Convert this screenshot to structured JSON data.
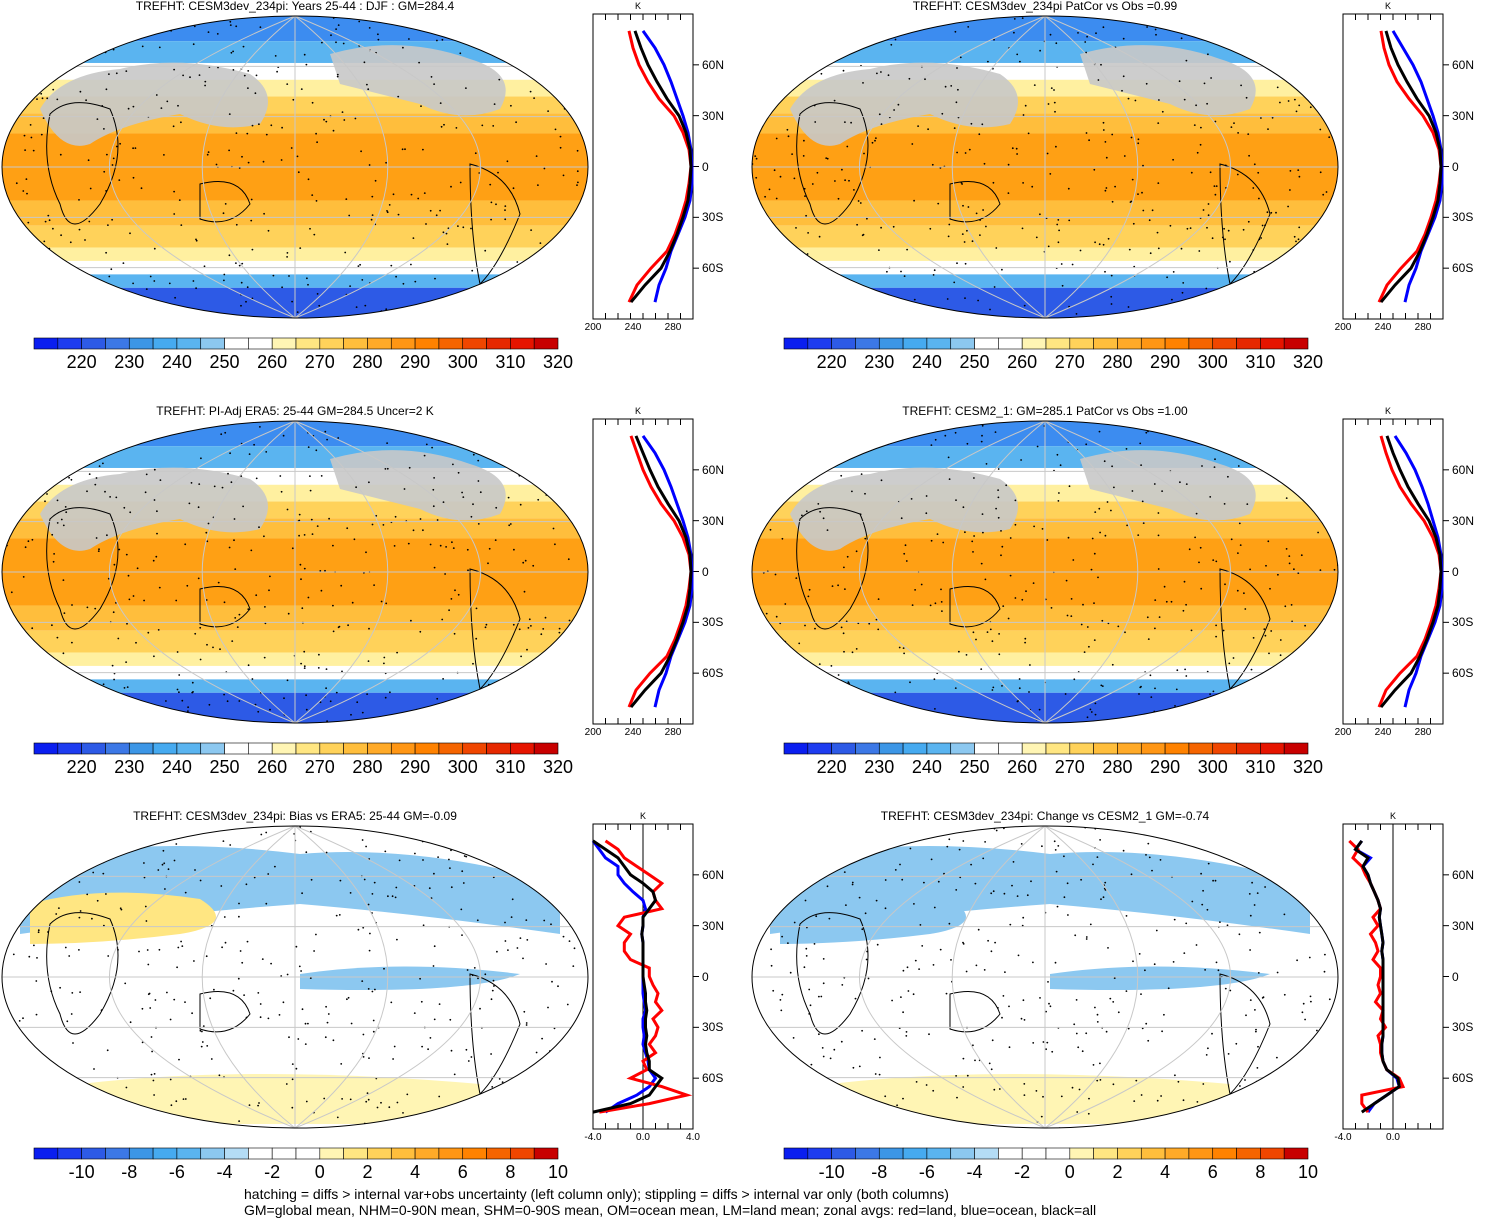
{
  "footnotes": {
    "line1": "hatching = diffs > internal var+obs uncertainty (left column only); stippling = diffs > internal var only (both columns)",
    "line2": "GM=global mean, NHM=0-90N mean, SHM=0-90S mean, OM=ocean mean, LM=land mean; zonal avgs: red=land, blue=ocean, black=all"
  },
  "colors": {
    "land": "#ff0000",
    "ocean": "#0000ff",
    "all": "#000000",
    "missing": "#c8c8c8"
  },
  "abs_colorbar": {
    "labels": [
      "220",
      "230",
      "240",
      "250",
      "260",
      "270",
      "280",
      "290",
      "300",
      "310",
      "320"
    ],
    "colors": [
      "#0a1ef0",
      "#1e3cf0",
      "#2d5ae6",
      "#3c78e6",
      "#3c96e6",
      "#46aaf0",
      "#5ab4f0",
      "#8cc8f0",
      "#ffffff",
      "#ffffff",
      "#fff5b4",
      "#ffe682",
      "#ffd25a",
      "#ffbe3c",
      "#ffaa28",
      "#ff9614",
      "#ff8200",
      "#f56400",
      "#f04600",
      "#e62800",
      "#e61400",
      "#c80000"
    ]
  },
  "diff_colorbar": {
    "labels": [
      "-10",
      "-8",
      "-6",
      "-4",
      "-2",
      "0",
      "2",
      "4",
      "6",
      "8",
      "10"
    ],
    "colors": [
      "#0a1ef0",
      "#1e3cf0",
      "#2d5ae6",
      "#3c78e6",
      "#3c96e6",
      "#46aaf0",
      "#5ab4f0",
      "#8cc8f0",
      "#b4dcf5",
      "#ffffff",
      "#ffffff",
      "#ffffff",
      "#fff5b4",
      "#ffe682",
      "#ffd25a",
      "#ffbe3c",
      "#ffaa28",
      "#ff9614",
      "#ff8200",
      "#f56400",
      "#f04600",
      "#c80000"
    ]
  },
  "panels": [
    {
      "title": "TREFHT: CESM3dev_234pi: Years 25-44 : DJF : GM=284.4",
      "kind": "abs",
      "lat_ticks": [
        "60N",
        "30N",
        "0",
        "30S",
        "60S"
      ],
      "k_label": "K",
      "zm_ticks": [
        "200",
        "240",
        "280"
      ]
    },
    {
      "title": "TREFHT: CESM3dev_234pi PatCor vs Obs =0.99",
      "kind": "abs",
      "lat_ticks": [
        "60N",
        "30N",
        "0",
        "30S",
        "60S"
      ],
      "k_label": "K",
      "zm_ticks": [
        "200",
        "240",
        "280"
      ]
    },
    {
      "title": "TREFHT: PI-Adj ERA5: 25-44 GM=284.5 Uncer=2 K",
      "kind": "abs",
      "lat_ticks": [
        "60N",
        "30N",
        "0",
        "30S",
        "60S"
      ],
      "k_label": "K",
      "zm_ticks": [
        "200",
        "240",
        "280"
      ]
    },
    {
      "title": "TREFHT: CESM2_1: GM=285.1 PatCor vs Obs =1.00",
      "kind": "abs",
      "lat_ticks": [
        "60N",
        "30N",
        "0",
        "30S",
        "60S"
      ],
      "k_label": "K",
      "zm_ticks": [
        "200",
        "240",
        "280"
      ]
    },
    {
      "title": "TREFHT: CESM3dev_234pi: Bias vs ERA5: 25-44 GM=-0.09",
      "kind": "diff",
      "lat_ticks": [
        "60N",
        "30N",
        "0",
        "30S",
        "60S"
      ],
      "k_label": "K",
      "zm_ticks": [
        "-4.0",
        "0.0",
        "4.0"
      ]
    },
    {
      "title": "TREFHT: CESM3dev_234pi: Change vs CESM2_1 GM=-0.74",
      "kind": "diff",
      "lat_ticks": [
        "60N",
        "30N",
        "0",
        "30S",
        "60S"
      ],
      "k_label": "K",
      "zm_ticks": [
        "-4.0",
        "0.0"
      ]
    }
  ],
  "chart_data": {
    "type": "heatmap",
    "variable": "TREFHT",
    "units": "K",
    "panels": [
      {
        "title": "TREFHT: CESM3dev_234pi: Years 25-44 : DJF : GM=284.4",
        "global_mean": 284.4,
        "colorbar_range": [
          220,
          320
        ],
        "zonal_mean": {
          "lat": [
            80,
            70,
            60,
            50,
            40,
            30,
            20,
            10,
            0,
            -10,
            -20,
            -30,
            -40,
            -50,
            -60,
            -70,
            -80
          ],
          "land": [
            236,
            240,
            246,
            255,
            266,
            281,
            290,
            296,
            298,
            296,
            293,
            288,
            282,
            274,
            258,
            244,
            236
          ],
          "ocean": [
            250,
            262,
            271,
            278,
            284,
            290,
            295,
            298,
            299,
            299,
            297,
            292,
            285,
            278,
            273,
            266,
            262
          ],
          "all": [
            242,
            248,
            255,
            264,
            274,
            286,
            293,
            297,
            298,
            297,
            295,
            290,
            284,
            277,
            268,
            252,
            238
          ]
        }
      },
      {
        "title": "TREFHT: CESM3dev_234pi PatCor vs Obs =0.99",
        "pattern_correlation": 0.99,
        "colorbar_range": [
          220,
          320
        ],
        "zonal_mean": {
          "lat": [
            80,
            70,
            60,
            50,
            40,
            30,
            20,
            10,
            0,
            -10,
            -20,
            -30,
            -40,
            -50,
            -60,
            -70,
            -80
          ],
          "land": [
            238,
            241,
            246,
            254,
            266,
            280,
            290,
            296,
            298,
            296,
            293,
            288,
            282,
            274,
            258,
            244,
            236
          ],
          "ocean": [
            250,
            260,
            270,
            278,
            284,
            290,
            295,
            298,
            299,
            299,
            297,
            292,
            285,
            278,
            273,
            266,
            262
          ],
          "all": [
            243,
            248,
            255,
            264,
            274,
            286,
            293,
            297,
            298,
            297,
            295,
            290,
            284,
            277,
            268,
            252,
            238
          ]
        }
      },
      {
        "title": "TREFHT: PI-Adj ERA5: 25-44 GM=284.5 Uncer=2 K",
        "global_mean": 284.5,
        "uncertainty": 2,
        "colorbar_range": [
          220,
          320
        ],
        "zonal_mean": {
          "lat": [
            80,
            70,
            60,
            50,
            40,
            30,
            20,
            10,
            0,
            -10,
            -20,
            -30,
            -40,
            -50,
            -60,
            -70,
            -80
          ],
          "land": [
            238,
            244,
            250,
            258,
            268,
            281,
            290,
            296,
            298,
            296,
            293,
            288,
            282,
            274,
            257,
            243,
            236
          ],
          "ocean": [
            250,
            262,
            271,
            278,
            284,
            290,
            295,
            298,
            299,
            299,
            297,
            292,
            285,
            278,
            273,
            266,
            262
          ],
          "all": [
            243,
            250,
            257,
            265,
            275,
            286,
            293,
            297,
            298,
            297,
            295,
            290,
            284,
            277,
            268,
            252,
            238
          ]
        }
      },
      {
        "title": "TREFHT: CESM2_1: GM=285.1 PatCor vs Obs =1.00",
        "global_mean": 285.1,
        "pattern_correlation": 1.0,
        "colorbar_range": [
          220,
          320
        ],
        "zonal_mean": {
          "lat": [
            80,
            70,
            60,
            50,
            40,
            30,
            20,
            10,
            0,
            -10,
            -20,
            -30,
            -40,
            -50,
            -60,
            -70,
            -80
          ],
          "land": [
            238,
            243,
            249,
            257,
            268,
            281,
            290,
            296,
            298,
            296,
            293,
            288,
            282,
            274,
            257,
            243,
            236
          ],
          "ocean": [
            252,
            263,
            272,
            279,
            285,
            290,
            295,
            298,
            299,
            299,
            297,
            292,
            285,
            278,
            273,
            266,
            262
          ],
          "all": [
            244,
            250,
            257,
            265,
            275,
            286,
            293,
            297,
            298,
            297,
            295,
            290,
            284,
            277,
            268,
            252,
            238
          ]
        }
      },
      {
        "title": "TREFHT: CESM3dev_234pi: Bias vs ERA5: 25-44 GM=-0.09",
        "global_mean": -0.09,
        "colorbar_range": [
          -10,
          10
        ],
        "zonal_mean": {
          "lat": [
            80,
            75,
            70,
            65,
            60,
            55,
            50,
            45,
            40,
            35,
            30,
            25,
            20,
            15,
            10,
            5,
            0,
            -5,
            -10,
            -15,
            -20,
            -25,
            -30,
            -35,
            -40,
            -45,
            -50,
            -55,
            -60,
            -65,
            -70,
            -75,
            -80
          ],
          "land": [
            -3.0,
            -2.0,
            -1.5,
            -0.5,
            0.5,
            1.5,
            0.8,
            1.0,
            1.5,
            -1.5,
            -2.0,
            -1.0,
            -1.5,
            -1.5,
            -1.0,
            0.5,
            0.5,
            0.8,
            1.2,
            1.0,
            1.5,
            0.8,
            1.2,
            1.0,
            0.5,
            1.0,
            0.0,
            0.3,
            -1.0,
            1.5,
            3.5,
            0.5,
            -3.5
          ],
          "ocean": [
            -4.0,
            -3.5,
            -3.0,
            -2.0,
            -2.0,
            -1.5,
            -0.8,
            0.0,
            0.2,
            0.0,
            0.0,
            -0.1,
            0.0,
            0.0,
            0.0,
            0.0,
            0.0,
            0.0,
            0.0,
            0.1,
            0.2,
            0.0,
            0.0,
            0.1,
            0.0,
            0.2,
            0.4,
            0.5,
            1.0,
            0.5,
            -0.5,
            -2.0,
            -3.0
          ],
          "all": [
            -4.0,
            -3.0,
            -2.0,
            -1.5,
            -1.0,
            0.0,
            0.8,
            1.0,
            0.5,
            0.0,
            0.0,
            -0.1,
            0.0,
            0.0,
            0.0,
            0.0,
            0.0,
            0.1,
            0.2,
            0.2,
            0.3,
            0.2,
            0.2,
            0.3,
            0.2,
            0.3,
            0.5,
            0.5,
            1.5,
            1.0,
            0.5,
            -1.0,
            -4.0
          ]
        }
      },
      {
        "title": "TREFHT: CESM3dev_234pi: Change vs CESM2_1 GM=-0.74",
        "global_mean": -0.74,
        "colorbar_range": [
          -10,
          10
        ],
        "zonal_mean": {
          "lat": [
            80,
            75,
            70,
            65,
            60,
            55,
            50,
            45,
            40,
            35,
            30,
            25,
            20,
            15,
            10,
            5,
            0,
            -5,
            -10,
            -15,
            -20,
            -25,
            -30,
            -35,
            -40,
            -45,
            -50,
            -55,
            -60,
            -65,
            -70,
            -75,
            -80
          ],
          "land": [
            -3.5,
            -2.8,
            -3.2,
            -2.5,
            -2.2,
            -1.8,
            -1.5,
            -1.2,
            -1.0,
            -1.6,
            -1.2,
            -1.8,
            -1.4,
            -1.2,
            -1.6,
            -1.0,
            -1.0,
            -1.2,
            -1.0,
            -1.4,
            -0.8,
            -1.0,
            -0.6,
            -1.2,
            -1.0,
            -1.0,
            -0.8,
            -0.5,
            0.5,
            0.8,
            -2.5,
            -2.5,
            -2.0
          ],
          "ocean": [
            -2.5,
            -3.0,
            -1.8,
            -2.4,
            -2.0,
            -1.8,
            -1.5,
            -1.2,
            -1.0,
            -1.1,
            -1.0,
            -0.9,
            -0.8,
            -0.9,
            -0.8,
            -0.8,
            -0.8,
            -0.8,
            -0.8,
            -0.8,
            -0.8,
            -0.8,
            -0.8,
            -0.8,
            -0.9,
            -0.9,
            -0.8,
            -0.5,
            0.3,
            0.5,
            -0.5,
            -1.5,
            -2.0
          ],
          "all": [
            -2.5,
            -3.0,
            -2.0,
            -2.4,
            -2.0,
            -1.8,
            -1.5,
            -1.2,
            -1.0,
            -1.1,
            -1.0,
            -0.9,
            -0.8,
            -0.9,
            -0.8,
            -0.8,
            -0.8,
            -0.8,
            -0.8,
            -0.8,
            -0.8,
            -0.8,
            -0.8,
            -0.8,
            -0.9,
            -0.9,
            -0.8,
            -0.5,
            0.4,
            0.5,
            -0.5,
            -1.5,
            -2.5
          ]
        }
      }
    ]
  }
}
